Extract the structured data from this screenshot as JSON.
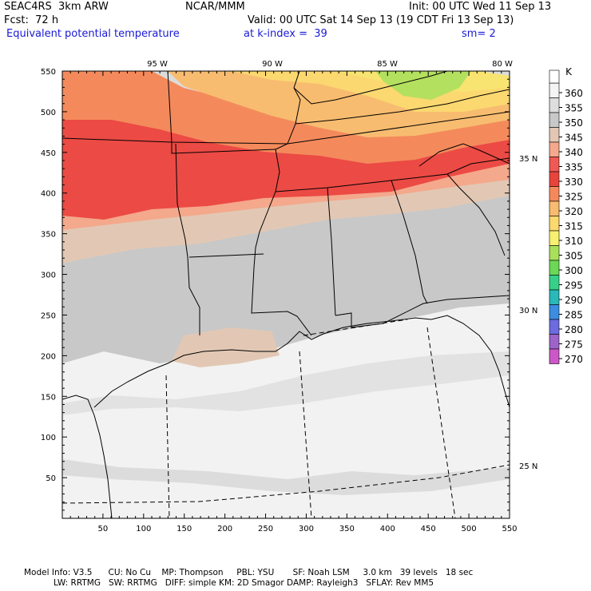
{
  "header": {
    "model": "SEAC4RS  3km ARW",
    "org": "NCAR/MMM",
    "init": "Init: 00 UTC Wed 11 Sep 13",
    "fcst": "Fcst:  72 h",
    "valid": "Valid: 00 UTC Sat 14 Sep 13 (19 CDT Fri 13 Sep 13)",
    "field": "Equivalent potential temperature",
    "level": "at k-index =  39",
    "smooth": "sm= 2"
  },
  "axes": {
    "top_lon": [
      "95 W",
      "90 W",
      "85 W",
      "80 W"
    ],
    "right_lat": [
      "35 N",
      "30 N",
      "25 N"
    ],
    "left_ticks": [
      "550",
      "500",
      "450",
      "400",
      "350",
      "300",
      "250",
      "200",
      "150",
      "100",
      "50"
    ],
    "bottom_ticks": [
      "50",
      "100",
      "150",
      "200",
      "250",
      "300",
      "350",
      "400",
      "450",
      "500",
      "550"
    ]
  },
  "colorbar": {
    "unit": "K",
    "levels": [
      {
        "label": "360",
        "color": "#f4f4f4"
      },
      {
        "label": "355",
        "color": "#dedede"
      },
      {
        "label": "350",
        "color": "#c8c8c8"
      },
      {
        "label": "345",
        "color": "#e2c8b4"
      },
      {
        "label": "340",
        "color": "#f4a88c"
      },
      {
        "label": "335",
        "color": "#f05a54"
      },
      {
        "label": "330",
        "color": "#e8443c"
      },
      {
        "label": "325",
        "color": "#f48a5c"
      },
      {
        "label": "320",
        "color": "#f8bc70"
      },
      {
        "label": "315",
        "color": "#fbd870"
      },
      {
        "label": "310",
        "color": "#f8f070"
      },
      {
        "label": "305",
        "color": "#a8e05c"
      },
      {
        "label": "300",
        "color": "#6cd858"
      },
      {
        "label": "295",
        "color": "#38d088"
      },
      {
        "label": "290",
        "color": "#2ab8b8"
      },
      {
        "label": "285",
        "color": "#3c8ce0"
      },
      {
        "label": "280",
        "color": "#6c6ce0"
      },
      {
        "label": "275",
        "color": "#9c64c8"
      },
      {
        "label": "270",
        "color": "#cc58c8"
      }
    ]
  },
  "footer": {
    "line1": "Model Info: V3.5      CU: No Cu    MP: Thompson     PBL: YSU       SF: Noah LSM     3.0 km   39 levels   18 sec",
    "line2": "LW: RRTMG   SW: RRTMG   DIFF: simple KM: 2D Smagor DAMP: Rayleigh3   SFLAY: Rev MM5"
  },
  "colors": {
    "gray_light": "#f2f2f2",
    "gray_mid": "#dcdcdc",
    "gray": "#c8c8c8",
    "tan": "#e2c8b4",
    "salmon": "#f4a88c",
    "red": "#ec4a44",
    "orange": "#f48a5c",
    "light_orange": "#f8bc70",
    "yellow": "#f8e470",
    "green": "#b4e060"
  }
}
